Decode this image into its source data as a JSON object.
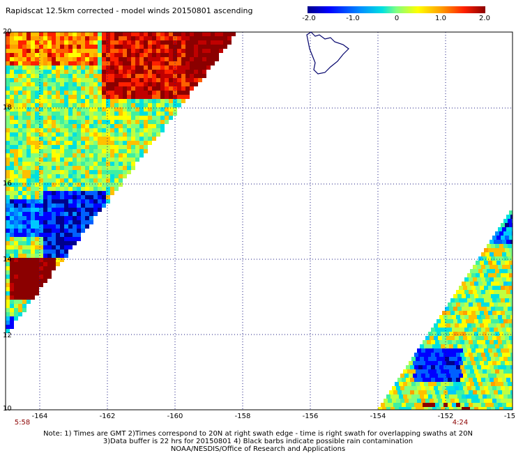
{
  "title": "Rapidscat 12.5km corrected - model winds 20150801 ascending",
  "colorbar": {
    "ticks": [
      "-2.0",
      "-1.0",
      "0",
      "1.0",
      "2.0"
    ],
    "colors": [
      "#00008b",
      "#0000ff",
      "#0090ff",
      "#00e0e0",
      "#80ff80",
      "#ffff00",
      "#ffa000",
      "#ff2000",
      "#8b0000"
    ]
  },
  "map": {
    "lon_labels": [
      "-164",
      "-162",
      "-160",
      "-158",
      "-156",
      "-154",
      "-152",
      "-15"
    ],
    "lat_labels": [
      "20",
      "18",
      "16",
      "14",
      "12",
      "10"
    ],
    "times": {
      "left": "5:58",
      "right": "4:24"
    },
    "land": "Hawaii (Big Island) coastline",
    "left_swath_summary": "Strong positive (red) differences near 19.5-20N, -163 to -158; mixed cyan/green mid swath; negative (blue) patch near 15-15.5N, -163; strong positive (dark red) patch near 13.5N, -164.5",
    "right_swath_summary": "Mostly green/yellow differences; negative blue patch near 11.5N, -152"
  },
  "notes": [
    "Note: 1) Times are GMT 2)Times correspond to 20N at right swath edge - time is right swath for overlapping swaths at 20N",
    "3)Data buffer is 22 hrs for 20150801 4) Black barbs indicate possible rain contamination",
    "NOAA/NESDIS/Office of Research and Applications"
  ]
}
